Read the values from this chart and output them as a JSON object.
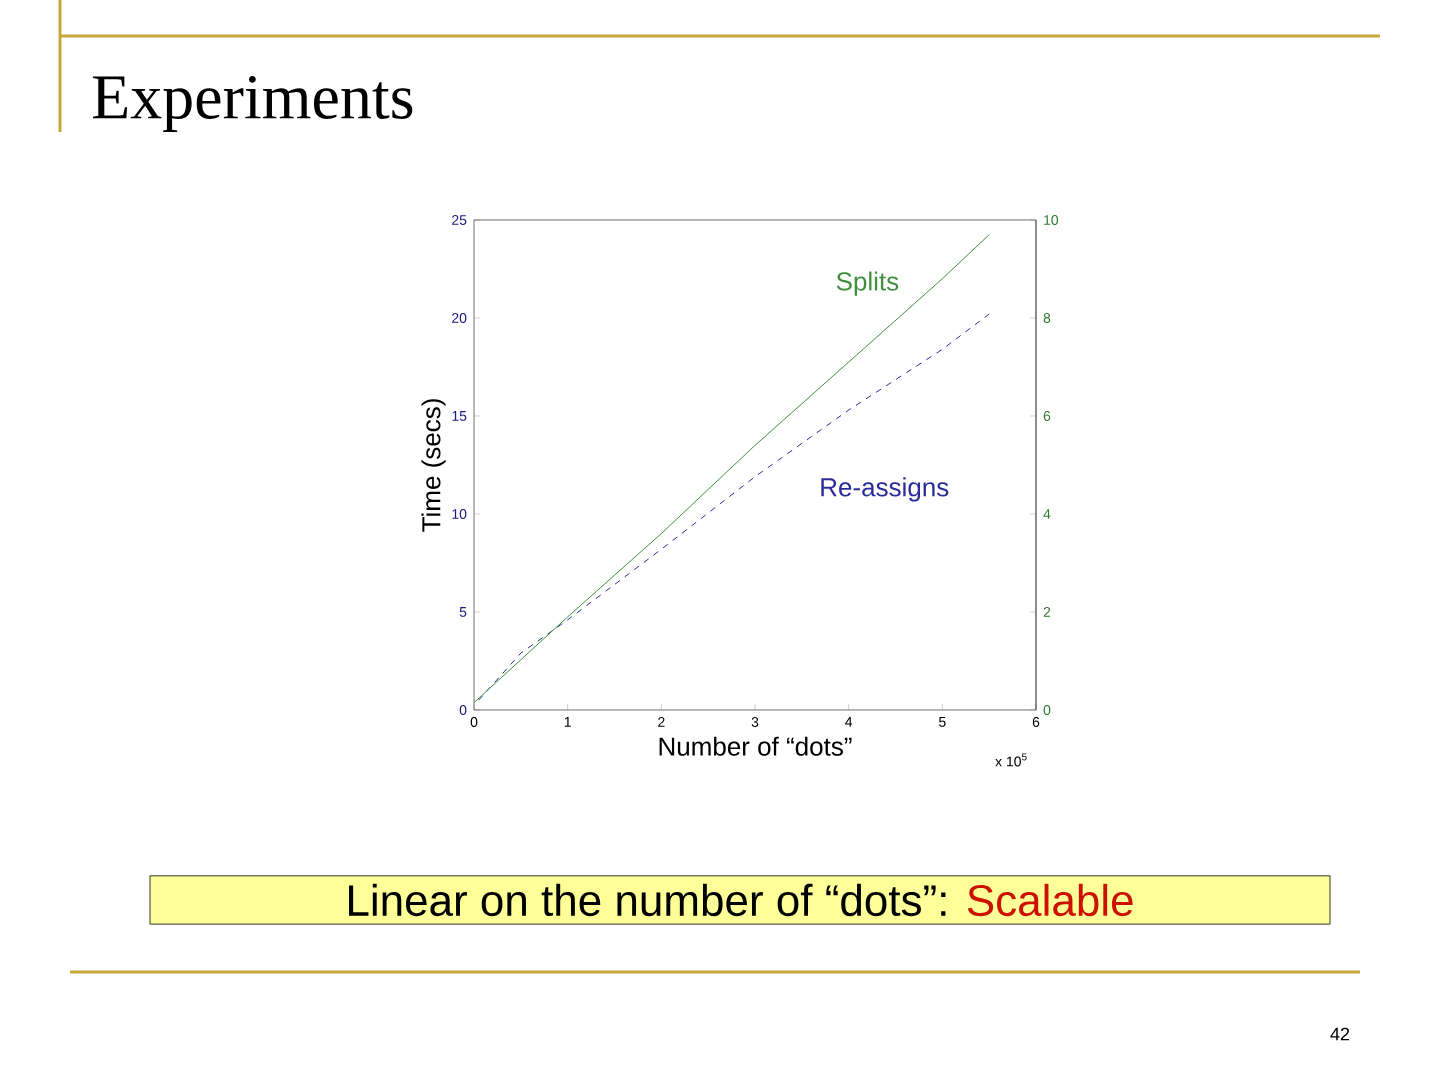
{
  "chart_data": {
    "type": "line",
    "title": "Experiments",
    "xlabel": "Number of “dots”",
    "ylabel": "Time (secs)",
    "xlim": [
      0,
      6
    ],
    "xticks": [
      0,
      1,
      2,
      3,
      4,
      5,
      6
    ],
    "ylim": [
      0,
      25
    ],
    "yticks": [
      0,
      5,
      10,
      15,
      20,
      25
    ],
    "y2lim": [
      0,
      10
    ],
    "y2ticks": [
      0,
      2,
      4,
      6,
      8,
      10
    ],
    "series": [
      {
        "name": "Splits",
        "color": "#3f8f3f",
        "axis": "y2",
        "line_style": "solid",
        "x": [
          0,
          1,
          2,
          3,
          4,
          5,
          5.5
        ],
        "values": [
          0.15,
          1.9,
          3.6,
          5.4,
          7.1,
          8.8,
          9.7
        ]
      },
      {
        "name": "Re-assigns",
        "color": "#2b2b9a",
        "line_style": "dashed",
        "x": [
          0.05,
          0.5,
          1,
          2,
          3,
          4,
          5,
          5.5
        ],
        "values": [
          0.5,
          2.9,
          4.6,
          8.2,
          11.9,
          15.3,
          18.4,
          20.2
        ]
      }
    ],
    "annotations": [
      "x 10$^{5}$",
      "Linear on the number of “dots”:",
      "Scalable",
      "42"
    ]
  }
}
